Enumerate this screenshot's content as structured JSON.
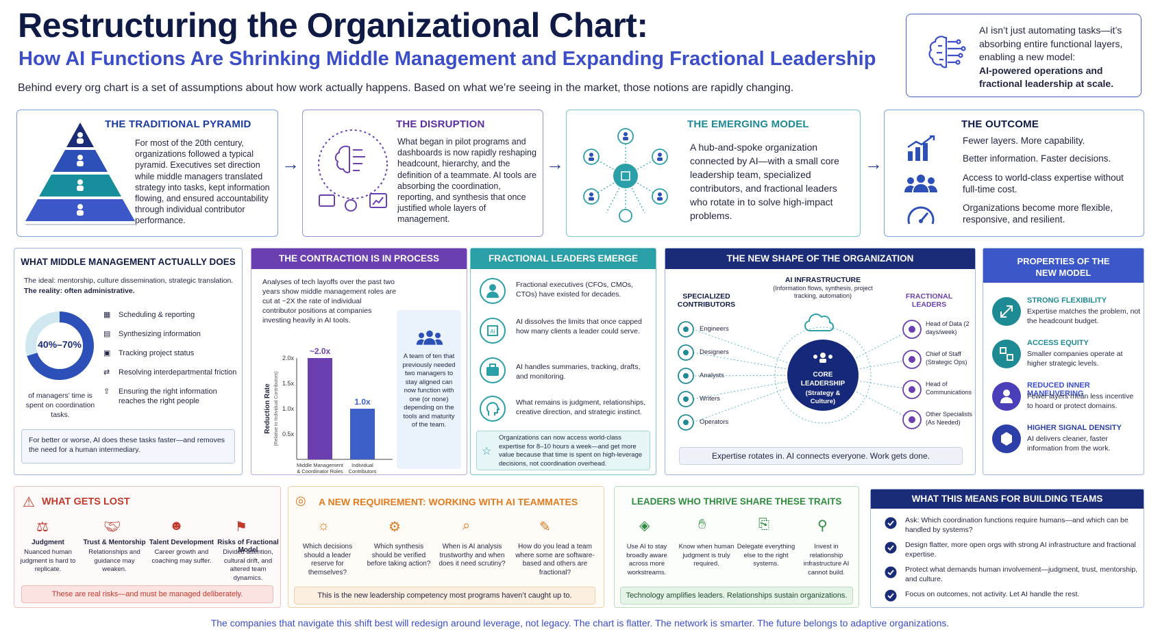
{
  "header": {
    "title": "Restructuring the Organizational Chart:",
    "subtitle": "How AI Functions Are Shrinking Middle Management and Expanding Fractional Leadership",
    "intro": "Behind every org chart is a set of assumptions about how work actually happens. Based on what we’re seeing in the market, those notions are rapidly changing."
  },
  "callout": {
    "line1": "AI isn’t just automating tasks—it’s absorbing entire functional layers, enabling a new model:",
    "line2": "AI-powered operations and fractional leadership at scale.",
    "icon": "brain-circuit-icon"
  },
  "stages": [
    {
      "title": "THE TRADITIONAL PYRAMID",
      "body": "For most of the 20th century, organizations followed a typical pyramid. Executives set direction while middle managers translated strategy into tasks, kept information flowing, and ensured accountability through individual contributor performance."
    },
    {
      "title": "THE DISRUPTION",
      "body": "What began in pilot programs and dashboards is now rapidly reshaping headcount, hierarchy, and the definition of a teammate. AI tools are absorbing the coordination, reporting, and synthesis that once justified whole layers of management."
    },
    {
      "title": "THE EMERGING MODEL",
      "body": "A hub-and-spoke organization connected by AI—with a small core leadership team, specialized contributors, and fractional leaders who rotate in to solve high-impact problems."
    },
    {
      "title": "THE OUTCOME",
      "items": [
        "Fewer layers. More capability.",
        "Better information. Faster decisions.",
        "Access to world-class expertise without full-time cost.",
        "Organizations become more flexible, responsive, and resilient."
      ]
    }
  ],
  "middle_mgmt": {
    "title": "WHAT MIDDLE MANAGEMENT ACTUALLY DOES",
    "ideal": "The ideal: mentorship, culture dissemination, strategic translation.",
    "reality": "The reality: often administrative.",
    "donut_label": "40%–70%",
    "donut_caption": "of managers’ time is spent on coordination tasks.",
    "donut_fraction": 0.7,
    "tasks": [
      "Scheduling & reporting",
      "Synthesizing information",
      "Tracking project status",
      "Resolving interdepartmental friction",
      "Ensuring the right information reaches the right people"
    ],
    "footer": "For better or worse, AI does these tasks faster—and removes the need for a human intermediary."
  },
  "contraction": {
    "title": "THE CONTRACTION IS IN PROCESS",
    "text": "Analyses of tech layoffs over the past two years show middle management roles are cut at ~2X the rate of individual contributor positions at companies investing heavily in AI tools.",
    "side_text": "A team of ten that previously needed two managers to stay aligned can now function with one (or none) depending on the tools and maturity of the team."
  },
  "chart_data": {
    "type": "bar",
    "categories": [
      "Middle Management & Coordinator Roles",
      "Individual Contributors"
    ],
    "values": [
      2.0,
      1.0
    ],
    "data_labels": [
      "~2.0x",
      "1.0x"
    ],
    "ylabel": "Reduction Rate",
    "ylabel_sub": "(Relative to Individual Contributors)",
    "yticks": [
      "0.5x",
      "1.0x",
      "1.5x",
      "2.0x"
    ],
    "ylim": [
      0,
      2.0
    ],
    "colors": [
      "#6b3fb0",
      "#3d5fc8"
    ]
  },
  "fractional": {
    "title": "FRACTIONAL LEADERS EMERGE",
    "items": [
      "Fractional executives (CFOs, CMOs, CTOs) have existed for decades.",
      "AI dissolves the limits that once capped how many clients a leader could serve.",
      "AI handles summaries, tracking, drafts, and monitoring.",
      "What remains is judgment, relationships, creative direction, and strategic instinct."
    ],
    "note": "Organizations can now access world-class expertise for 8–10 hours a week—and get more value because that time is spent on high-leverage decisions, not coordination overhead."
  },
  "new_shape": {
    "title": "THE NEW SHAPE OF THE ORGANIZATION",
    "ai_title": "AI INFRASTRUCTURE",
    "ai_sub": "(Information flows, synthesis, project tracking, automation)",
    "left_title": "SPECIALIZED CONTRIBUTORS",
    "right_title": "FRACTIONAL LEADERS",
    "left": [
      "Engineers",
      "Designers",
      "Analysts",
      "Writers",
      "Operators"
    ],
    "right": [
      "Head of Data (2 days/week)",
      "Chief of Staff (Strategic Ops)",
      "Head of Communications",
      "Other Specialists (As Needed)"
    ],
    "core": "CORE LEADERSHIP",
    "core_sub": "(Strategy & Culture)",
    "footer": "Expertise rotates in. AI connects everyone. Work gets done."
  },
  "properties": {
    "title": "PROPERTIES OF THE NEW MODEL",
    "items": [
      {
        "title": "STRONG FLEXIBILITY",
        "body": "Expertise matches the problem, not the headcount budget."
      },
      {
        "title": "ACCESS EQUITY",
        "body": "Smaller companies operate at higher strategic levels."
      },
      {
        "title": "REDUCED INNER MANEUVERING",
        "body": "Fewer layers mean less incentive to hoard or protect domains."
      },
      {
        "title": "HIGHER SIGNAL DENSITY",
        "body": "AI delivers cleaner, faster information from the work."
      }
    ]
  },
  "lost": {
    "title": "WHAT GETS LOST",
    "items": [
      {
        "title": "Judgment",
        "body": "Nuanced human judgment is hard to replicate."
      },
      {
        "title": "Trust & Mentorship",
        "body": "Relationships and guidance may weaken."
      },
      {
        "title": "Talent Development",
        "body": "Career growth and coaching may suffer."
      },
      {
        "title": "Risks of Fractional Model",
        "body": "Divided attention, cultural drift, and altered team dynamics."
      }
    ],
    "footer": "These are real risks—and must be managed deliberately."
  },
  "requirement": {
    "title": "A NEW REQUIREMENT: WORKING WITH AI TEAMMATES",
    "items": [
      "Which decisions should a leader reserve for themselves?",
      "Which synthesis should be verified before taking action?",
      "When is AI analysis trustworthy and when does it need scrutiny?",
      "How do you lead a team where some are software-based and others are fractional?"
    ],
    "footer": "This is the new leadership competency most programs haven’t caught up to."
  },
  "traits": {
    "title": "LEADERS WHO THRIVE SHARE THESE TRAITS",
    "items": [
      "Use AI to stay broadly aware across more workstreams.",
      "Know when human judgment is truly required.",
      "Delegate everything else to the right systems.",
      "Invest in relationship infrastructure AI cannot build."
    ],
    "footer": "Technology amplifies leaders. Relationships sustain organizations."
  },
  "building": {
    "title": "WHAT THIS MEANS FOR BUILDING TEAMS",
    "items": [
      "Ask: Which coordination functions require humans—and which can be handled by systems?",
      "Design flatter, more open orgs with strong AI infrastructure and fractional expertise.",
      "Protect what demands human involvement—judgment, trust, mentorship, and culture.",
      "Focus on outcomes, not activity. Let AI handle the rest."
    ]
  },
  "footer": "The companies that navigate this shift best will redesign around leverage, not legacy. The chart is flatter. The network is smarter. The future belongs to adaptive organizations.",
  "colors": {
    "navy": "#0f1b45",
    "blue": "#3b4ec8",
    "purple": "#6b3fb0",
    "teal": "#2a9fa8",
    "red": "#c0392b",
    "orange": "#e07b1f",
    "green": "#2e8b3e"
  }
}
